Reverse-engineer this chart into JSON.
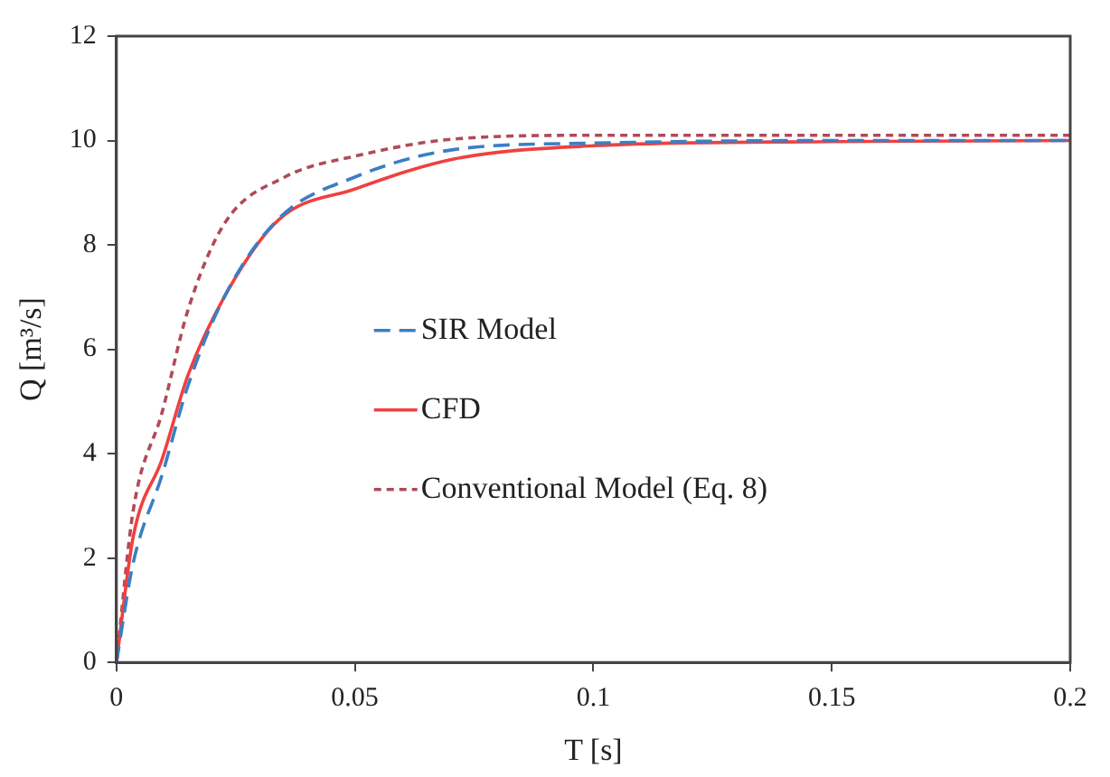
{
  "chart_data": {
    "type": "line",
    "xlabel": "T [s]",
    "ylabel": "Q [m³/s]",
    "xlim": [
      0,
      0.2
    ],
    "xticks": [
      0,
      0.05,
      0.1,
      0.15,
      0.2
    ],
    "ylim": [
      0,
      12
    ],
    "yticks": [
      0,
      2,
      4,
      6,
      8,
      10,
      12
    ],
    "grid": false,
    "legend": "center",
    "marker": "none",
    "series": [
      {
        "name": "SIR Model",
        "color": "#3a7fc4",
        "line_style": "dashed",
        "x": [
          0,
          0.0035,
          0.0096,
          0.015,
          0.0226,
          0.034,
          0.05,
          0.071,
          0.1,
          0.15,
          0.2
        ],
        "values": [
          0,
          1.9,
          3.6,
          5.3,
          7.0,
          8.5,
          9.3,
          9.83,
          9.95,
          10.0,
          10.0
        ]
      },
      {
        "name": "CFD",
        "color": "#f04040",
        "line_style": "solid",
        "x": [
          0,
          0.0035,
          0.0096,
          0.015,
          0.0226,
          0.034,
          0.05,
          0.071,
          0.1,
          0.15,
          0.2
        ],
        "values": [
          0,
          2.4,
          3.9,
          5.5,
          7.0,
          8.48,
          9.07,
          9.65,
          9.9,
          9.98,
          10.0
        ]
      },
      {
        "name": "Conventional Model (Eq. 8)",
        "color": "#b04a5a",
        "line_style": "dotted",
        "x": [
          0,
          0.0035,
          0.0096,
          0.015,
          0.0226,
          0.0353,
          0.05,
          0.071,
          0.1,
          0.15,
          0.2
        ],
        "values": [
          0,
          2.9,
          4.8,
          6.75,
          8.4,
          9.3,
          9.7,
          10.03,
          10.1,
          10.1,
          10.1
        ]
      }
    ]
  }
}
